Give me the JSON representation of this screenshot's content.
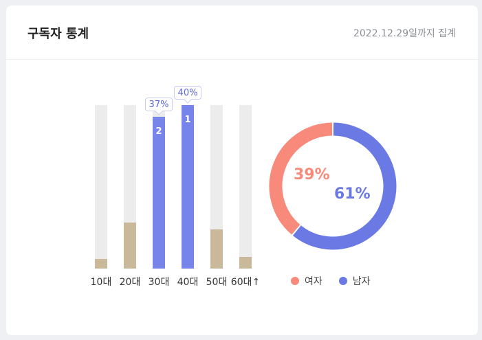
{
  "header": {
    "title": "구독자 통계",
    "date": "2022.12.29일까지 집계"
  },
  "colors": {
    "male": "#7784ea",
    "female": "#c9b99a",
    "donut_female": "#f78a7a",
    "donut_male": "#6a79e3",
    "track": "#ececec"
  },
  "chart_data": [
    {
      "type": "bar",
      "categories": [
        "10대",
        "20대",
        "30대",
        "40대",
        "50대",
        "60대↑"
      ],
      "values": [
        6,
        28,
        93,
        100,
        24,
        7
      ],
      "value_unit": "% of column height",
      "highlighted": [
        {
          "category": "30대",
          "rank": "2",
          "label": "37%"
        },
        {
          "category": "40대",
          "rank": "1",
          "label": "40%"
        }
      ]
    },
    {
      "type": "pie",
      "donut": true,
      "categories": [
        "여자",
        "남자"
      ],
      "values": [
        39,
        61
      ],
      "labels": [
        "39%",
        "61%"
      ]
    }
  ]
}
